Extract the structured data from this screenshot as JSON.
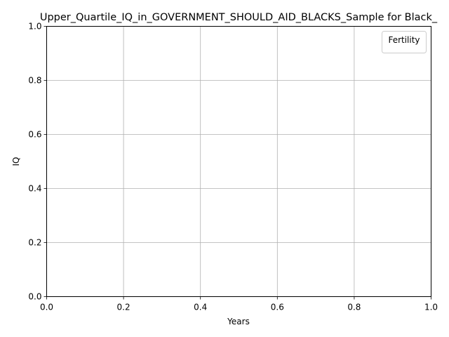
{
  "chart_data": {
    "type": "line",
    "title": "Upper_Quartile_IQ_in_GOVERNMENT_SHOULD_AID_BLACKS_Sample for Black_",
    "xlabel": "Years",
    "ylabel": "IQ",
    "xlim": [
      0,
      1
    ],
    "ylim": [
      0,
      1
    ],
    "x_ticks": [
      "0.0",
      "0.2",
      "0.4",
      "0.6",
      "0.8",
      "1.0"
    ],
    "y_ticks": [
      "0.0",
      "0.2",
      "0.4",
      "0.6",
      "0.8",
      "1.0"
    ],
    "grid": true,
    "legend": {
      "title": "Fertility",
      "placement": "top-right",
      "entries": []
    },
    "series": []
  }
}
